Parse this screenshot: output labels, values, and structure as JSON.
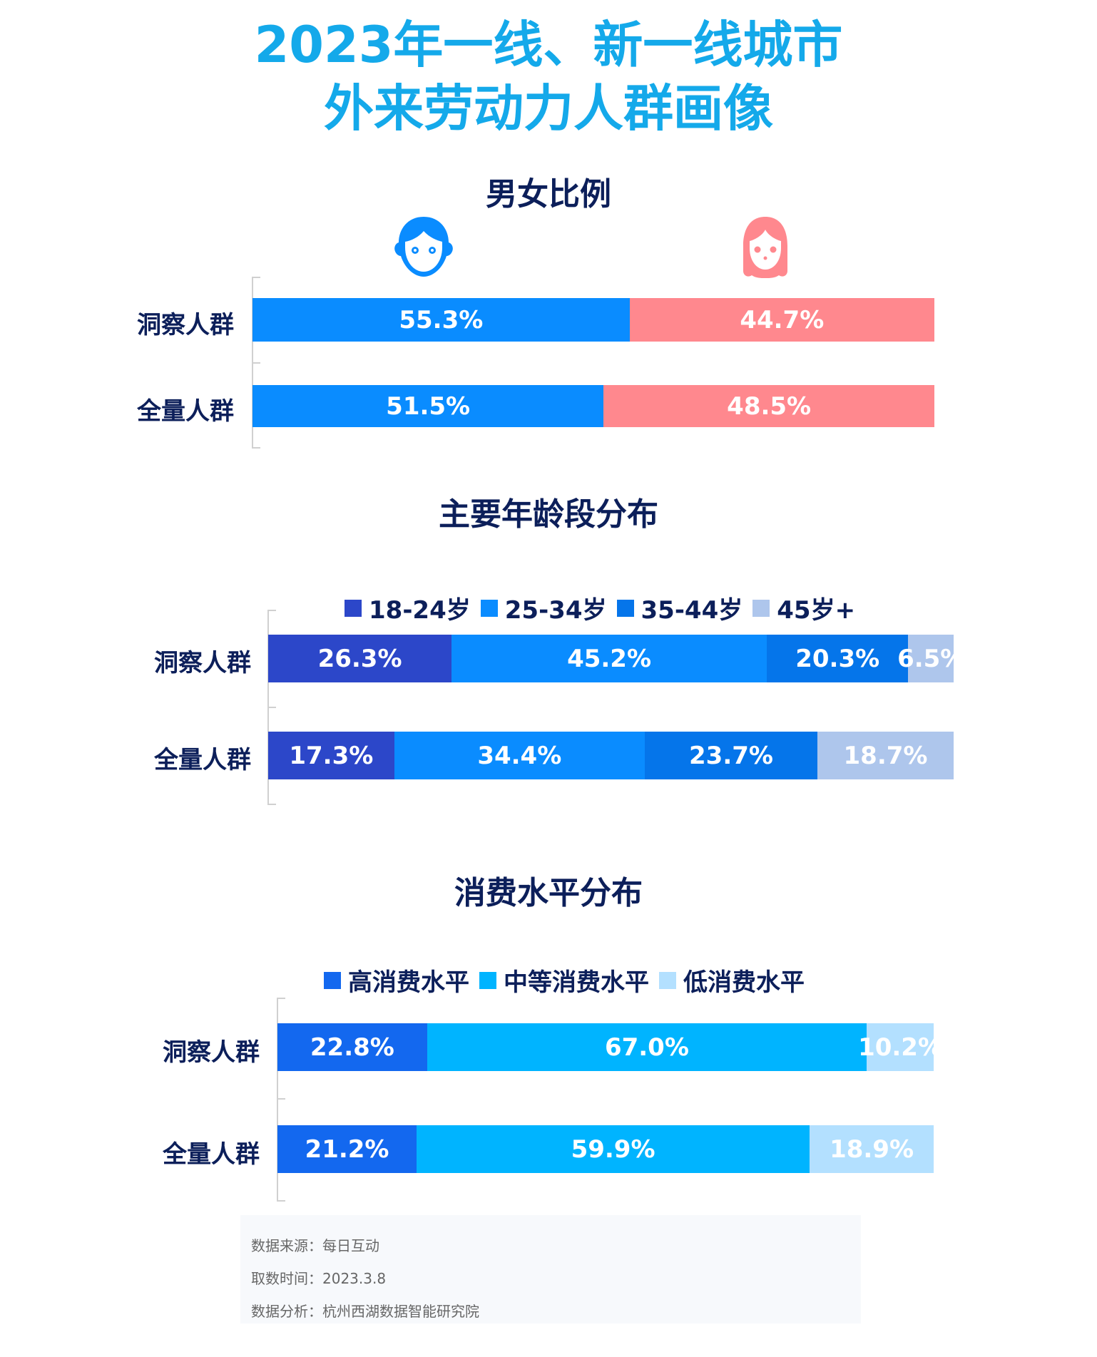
{
  "title": {
    "line1": "2023年一线、新一线城市",
    "line2": "外来劳动力人群画像"
  },
  "colors": {
    "title": "#14a9ea",
    "heading": "#0c1f5a"
  },
  "chart_data": [
    {
      "type": "bar",
      "stacked": "100%",
      "orientation": "horizontal",
      "title": "男女比例",
      "categories": [
        "洞察人群",
        "全量人群"
      ],
      "legend": "icons: male-icon, female-icon (top)",
      "series": [
        {
          "name": "male",
          "color": "#0a8cff",
          "values": [
            55.3,
            51.5
          ]
        },
        {
          "name": "female",
          "color": "#ff888e",
          "values": [
            44.7,
            48.5
          ]
        }
      ]
    },
    {
      "type": "bar",
      "stacked": "100%",
      "orientation": "horizontal",
      "title": "主要年龄段分布",
      "legend_position": "top",
      "categories": [
        "洞察人群",
        "全量人群"
      ],
      "series": [
        {
          "name": "18-24岁",
          "color": "#2c47c9",
          "values": [
            26.3,
            17.3
          ]
        },
        {
          "name": "25-34岁",
          "color": "#0a8cff",
          "values": [
            45.2,
            34.4
          ]
        },
        {
          "name": "35-44岁",
          "color": "#0575ea",
          "values": [
            20.3,
            23.7
          ]
        },
        {
          "name": "45岁+",
          "color": "#aec6ec",
          "values": [
            6.5,
            18.7
          ]
        }
      ]
    },
    {
      "type": "bar",
      "stacked": "100%",
      "orientation": "horizontal",
      "title": "消费水平分布",
      "legend_position": "top",
      "categories": [
        "洞察人群",
        "全量人群"
      ],
      "series": [
        {
          "name": "高消费水平",
          "color": "#1368ef",
          "values": [
            22.8,
            21.2
          ]
        },
        {
          "name": "中等消费水平",
          "color": "#00b4ff",
          "values": [
            67.0,
            59.9
          ]
        },
        {
          "name": "低消费水平",
          "color": "#b3e0ff",
          "values": [
            10.2,
            18.9
          ]
        }
      ]
    }
  ],
  "footer": {
    "source": "数据来源：每日互动",
    "date": "取数时间：2023.3.8",
    "analysis": "数据分析：杭州西湖数据智能研究院"
  }
}
